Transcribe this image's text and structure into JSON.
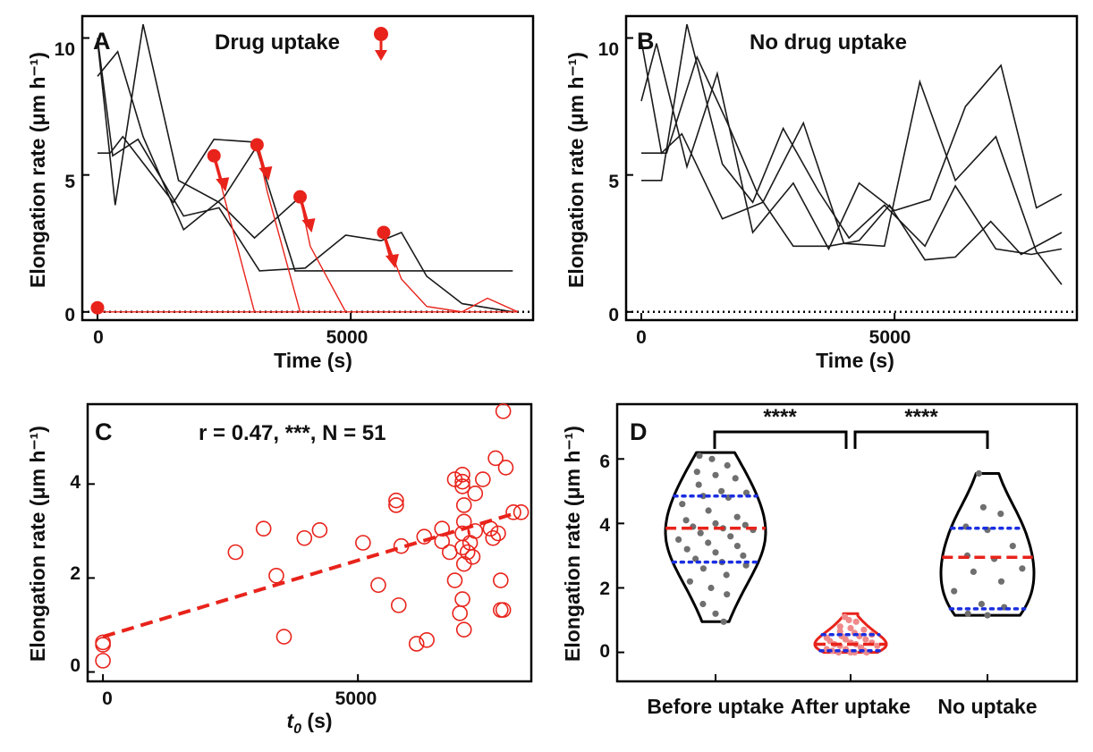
{
  "colors": {
    "axis": "#000000",
    "red": "#e8231b",
    "black": "#1a1a1a",
    "blue": "#1a2ee0",
    "gray": "#6f6f6f",
    "pink": "#f08a8a"
  },
  "panels": {
    "A": {
      "label": "A",
      "title": "Drug uptake",
      "xlabel": "Time (s)",
      "ylabel": "Elongation rate (μm h⁻¹)",
      "xticks": [
        "0",
        "5000"
      ],
      "yticks": [
        "0",
        "5",
        "10"
      ]
    },
    "B": {
      "label": "B",
      "title": "No drug uptake",
      "xlabel": "Time (s)",
      "ylabel": "Elongation rate (μm h⁻¹)",
      "xticks": [
        "0",
        "5000"
      ],
      "yticks": [
        "0",
        "5",
        "10"
      ]
    },
    "C": {
      "label": "C",
      "annotation": "r = 0.47, ***, N = 51",
      "xlabel_var": "t",
      "xlabel_sub": "0",
      "xlabel_unit": " (s)",
      "ylabel": "Elongation rate (μm h⁻¹)",
      "xticks": [
        "0",
        "5000"
      ],
      "yticks": [
        "0",
        "2",
        "4"
      ]
    },
    "D": {
      "label": "D",
      "ylabel": "Elongation rate (μm h⁻¹)",
      "yticks": [
        "0",
        "2",
        "4",
        "6"
      ],
      "categories": [
        "Before uptake",
        "After uptake",
        "No uptake"
      ],
      "sig1": "****",
      "sig2": "****"
    }
  },
  "chart_data": [
    {
      "panel": "A",
      "type": "line",
      "xlim": [
        -300,
        8600
      ],
      "ylim": [
        -0.3,
        10.8
      ],
      "reference_line_y": 0,
      "black_series": [
        {
          "x": [
            0,
            250,
            500,
            1500,
            2300,
            3100,
            3900,
            4800,
            5600,
            6400,
            7200,
            8200
          ],
          "y": [
            5.8,
            5.8,
            6.4,
            4.0,
            6.3,
            6.2,
            1.5,
            1.5,
            1.5,
            1.5,
            1.5,
            1.5
          ]
        },
        {
          "x": [
            0,
            400,
            900,
            1700,
            2500,
            3200
          ],
          "y": [
            8.6,
            9.5,
            6.4,
            3.0,
            4.2,
            6.2
          ]
        },
        {
          "x": [
            0,
            350,
            900,
            1600,
            2400,
            3100,
            4000
          ],
          "y": [
            9.9,
            3.9,
            10.5,
            4.8,
            4.0,
            2.7,
            4.2
          ]
        },
        {
          "x": [
            0,
            300,
            800,
            1700,
            2400,
            3200,
            4100,
            4900,
            5600,
            6000,
            6500,
            7200,
            8200
          ],
          "y": [
            10.0,
            5.7,
            6.3,
            3.5,
            3.8,
            1.5,
            1.6,
            2.8,
            2.6,
            2.9,
            1.3,
            0.3,
            0.0
          ]
        }
      ],
      "uptake_markers": [
        {
          "x": 0,
          "y": 0.15
        },
        {
          "x": 2300,
          "y": 5.7
        },
        {
          "x": 3150,
          "y": 6.1
        },
        {
          "x": 4000,
          "y": 4.2
        },
        {
          "x": 5650,
          "y": 2.9
        }
      ],
      "red_post_uptake": [
        {
          "x": [
            2300,
            2500,
            3100
          ],
          "y": [
            5.7,
            4.2,
            0
          ]
        },
        {
          "x": [
            3150,
            3350,
            4000
          ],
          "y": [
            6.1,
            4.4,
            0
          ]
        },
        {
          "x": [
            4000,
            4200,
            4900
          ],
          "y": [
            4.2,
            2.4,
            0
          ]
        },
        {
          "x": [
            5650,
            6000,
            6500,
            7200,
            7700,
            8300
          ],
          "y": [
            2.9,
            1.2,
            0.2,
            0.0,
            0.5,
            0.0
          ]
        },
        {
          "x": [
            0,
            8300
          ],
          "y": [
            0,
            0
          ]
        }
      ]
    },
    {
      "panel": "B",
      "type": "line",
      "xlim": [
        -300,
        8600
      ],
      "ylim": [
        -0.3,
        10.8
      ],
      "reference_line_y": 0,
      "series": [
        {
          "x": [
            0,
            400,
            800,
            1600,
            2400,
            3200,
            4000,
            4800,
            5500,
            6200,
            7000,
            7800,
            8300
          ],
          "y": [
            9.9,
            5.8,
            6.5,
            3.4,
            4.0,
            6.9,
            2.5,
            2.4,
            8.4,
            4.8,
            6.4,
            2.2,
            1.0
          ]
        },
        {
          "x": [
            0,
            400,
            900,
            1600,
            2200,
            2800,
            3500,
            4100,
            4800,
            5600,
            6200,
            7000,
            7700,
            8300
          ],
          "y": [
            4.8,
            4.8,
            10.5,
            5.4,
            4.0,
            6.7,
            4.4,
            2.7,
            3.9,
            2.4,
            4.6,
            2.3,
            2.1,
            2.3
          ]
        },
        {
          "x": [
            0,
            300,
            900,
            1500,
            2200,
            3000,
            3700,
            4300,
            5000,
            5700,
            6400,
            7100,
            7800,
            8300
          ],
          "y": [
            7.7,
            9.8,
            5.3,
            8.7,
            2.9,
            4.7,
            2.3,
            4.7,
            3.7,
            4.1,
            7.5,
            9.0,
            3.8,
            4.3
          ]
        },
        {
          "x": [
            0,
            500,
            1100,
            1700,
            2300,
            3000,
            3700,
            4300,
            4900,
            5600,
            6200,
            6900,
            7500,
            8300
          ],
          "y": [
            5.8,
            5.8,
            9.3,
            6.9,
            4.3,
            2.4,
            2.4,
            2.6,
            3.9,
            1.9,
            2.0,
            3.3,
            2.1,
            2.9
          ]
        }
      ]
    },
    {
      "panel": "C",
      "type": "scatter",
      "xlim": [
        -300,
        8400
      ],
      "ylim": [
        -0.2,
        5.7
      ],
      "fit": {
        "x": [
          0,
          8000
        ],
        "y": [
          0.75,
          3.35
        ]
      },
      "points": [
        {
          "x": 0,
          "y": 0.63
        },
        {
          "x": 0,
          "y": 0.58
        },
        {
          "x": 0,
          "y": 0.24
        },
        {
          "x": 2600,
          "y": 2.55
        },
        {
          "x": 3150,
          "y": 3.05
        },
        {
          "x": 3400,
          "y": 2.05
        },
        {
          "x": 3550,
          "y": 0.75
        },
        {
          "x": 3950,
          "y": 2.85
        },
        {
          "x": 4250,
          "y": 3.02
        },
        {
          "x": 5100,
          "y": 2.75
        },
        {
          "x": 5400,
          "y": 1.85
        },
        {
          "x": 5750,
          "y": 3.65
        },
        {
          "x": 5750,
          "y": 3.55
        },
        {
          "x": 5800,
          "y": 1.42
        },
        {
          "x": 5850,
          "y": 2.68
        },
        {
          "x": 6150,
          "y": 0.6
        },
        {
          "x": 6350,
          "y": 0.68
        },
        {
          "x": 6300,
          "y": 2.88
        },
        {
          "x": 6650,
          "y": 3.05
        },
        {
          "x": 6650,
          "y": 2.78
        },
        {
          "x": 6900,
          "y": 4.1
        },
        {
          "x": 6900,
          "y": 1.95
        },
        {
          "x": 7050,
          "y": 4.2
        },
        {
          "x": 7050,
          "y": 4.05
        },
        {
          "x": 7050,
          "y": 3.95
        },
        {
          "x": 7080,
          "y": 3.55
        },
        {
          "x": 7080,
          "y": 3.2
        },
        {
          "x": 7050,
          "y": 2.95
        },
        {
          "x": 7050,
          "y": 2.65
        },
        {
          "x": 7080,
          "y": 2.3
        },
        {
          "x": 7050,
          "y": 1.55
        },
        {
          "x": 7000,
          "y": 1.25
        },
        {
          "x": 7080,
          "y": 0.9
        },
        {
          "x": 7150,
          "y": 2.55
        },
        {
          "x": 7200,
          "y": 2.75
        },
        {
          "x": 7250,
          "y": 2.45
        },
        {
          "x": 7300,
          "y": 3.0
        },
        {
          "x": 7300,
          "y": 3.8
        },
        {
          "x": 7450,
          "y": 4.1
        },
        {
          "x": 7650,
          "y": 2.85
        },
        {
          "x": 7700,
          "y": 4.55
        },
        {
          "x": 7750,
          "y": 2.95
        },
        {
          "x": 7800,
          "y": 1.95
        },
        {
          "x": 7800,
          "y": 1.32
        },
        {
          "x": 7850,
          "y": 1.32
        },
        {
          "x": 7850,
          "y": 5.55
        },
        {
          "x": 7900,
          "y": 4.35
        },
        {
          "x": 8050,
          "y": 3.4
        },
        {
          "x": 8200,
          "y": 3.4
        },
        {
          "x": 7600,
          "y": 3.05
        },
        {
          "x": 6800,
          "y": 2.55
        }
      ]
    },
    {
      "panel": "D",
      "type": "violin",
      "ylim": [
        -0.9,
        7.7
      ],
      "categories": [
        "Before uptake",
        "After uptake",
        "No uptake"
      ],
      "groups": [
        {
          "name": "Before uptake",
          "median": 3.85,
          "q1": 2.8,
          "q3": 4.85,
          "min": 0.95,
          "max": 6.2,
          "violin_color": "black",
          "point_color": "gray",
          "points": [
            6.1,
            6.0,
            5.8,
            5.6,
            5.5,
            5.4,
            5.2,
            5.0,
            4.95,
            4.85,
            4.8,
            4.6,
            4.4,
            4.2,
            4.1,
            4.0,
            3.95,
            3.9,
            3.85,
            3.8,
            3.7,
            3.6,
            3.5,
            3.4,
            3.3,
            3.2,
            3.1,
            3.0,
            2.9,
            2.8,
            2.7,
            2.6,
            2.4,
            2.2,
            2.0,
            1.8,
            1.5,
            1.2,
            0.95
          ]
        },
        {
          "name": "After uptake",
          "median": 0.25,
          "q1": 0.05,
          "q3": 0.55,
          "min": 0.0,
          "max": 1.2,
          "violin_color": "red",
          "point_color": "pink",
          "points": [
            1.1,
            1.0,
            0.95,
            0.8,
            0.75,
            0.7,
            0.65,
            0.6,
            0.55,
            0.5,
            0.5,
            0.45,
            0.4,
            0.4,
            0.35,
            0.3,
            0.3,
            0.25,
            0.25,
            0.2,
            0.2,
            0.15,
            0.1,
            0.1,
            0.05,
            0.05,
            0.0,
            0.0,
            0.0,
            0.0
          ]
        },
        {
          "name": "No uptake",
          "median": 2.95,
          "q1": 1.35,
          "q3": 3.85,
          "min": 1.15,
          "max": 5.55,
          "violin_color": "black",
          "point_color": "gray",
          "points": [
            5.55,
            4.5,
            4.3,
            3.9,
            3.8,
            3.3,
            3.0,
            2.9,
            2.6,
            2.5,
            2.2,
            1.9,
            1.5,
            1.4,
            1.2,
            1.15
          ]
        }
      ]
    }
  ]
}
